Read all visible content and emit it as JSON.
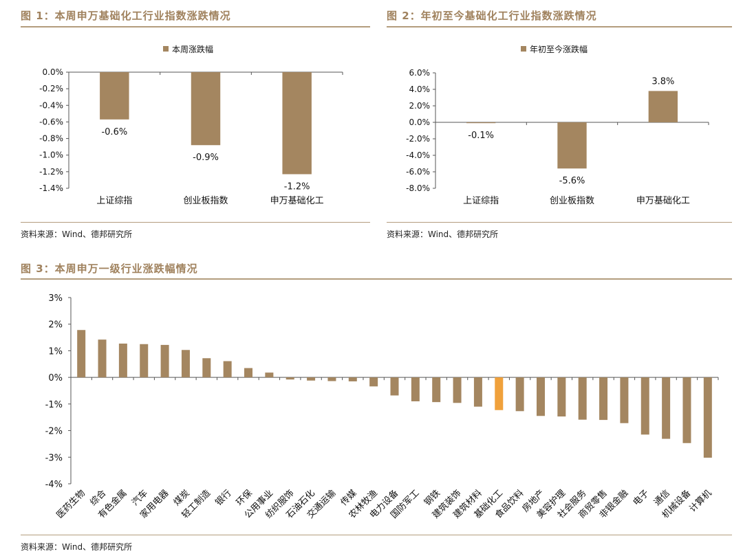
{
  "colors": {
    "bar": "#a48660",
    "highlight": "#f0a13b",
    "title": "#a0825e",
    "rule": "#b39c7d",
    "axis": "#555555"
  },
  "fig1": {
    "title": "图 1：本周申万基础化工行业指数涨跌情况",
    "source": "资料来源：Wind、德邦研究所"
  },
  "fig2": {
    "title": "图 2：年初至今基础化工行业指数涨跌情况",
    "source": "资料来源：Wind、德邦研究所"
  },
  "fig3": {
    "title": "图 3：本周申万一级行业涨跌幅情况",
    "source": "资料来源：Wind、德邦研究所"
  },
  "chart_data": [
    {
      "type": "bar",
      "title": "",
      "legend": "本周涨跌幅",
      "legend_position": "top-center",
      "categories": [
        "上证综指",
        "创业板指数",
        "申万基础化工"
      ],
      "values": [
        -0.57,
        -0.88,
        -1.23
      ],
      "data_labels": [
        "-0.6%",
        "-0.9%",
        "-1.2%"
      ],
      "ylim": [
        -1.4,
        0.0
      ],
      "yticks": [
        0.0,
        -0.2,
        -0.4,
        -0.6,
        -0.8,
        -1.0,
        -1.2,
        -1.4
      ],
      "ytick_labels": [
        "0.0%",
        "-0.2%",
        "-0.4%",
        "-0.6%",
        "-0.8%",
        "-1.0%",
        "-1.2%",
        "-1.4%"
      ],
      "xlabel": "",
      "ylabel": ""
    },
    {
      "type": "bar",
      "title": "",
      "legend": "年初至今涨跌幅",
      "legend_position": "top-center",
      "categories": [
        "上证综指",
        "创业板指数",
        "申万基础化工"
      ],
      "values": [
        -0.1,
        -5.6,
        3.8
      ],
      "data_labels": [
        "-0.1%",
        "-5.6%",
        "3.8%"
      ],
      "ylim": [
        -8.0,
        6.0
      ],
      "yticks": [
        6.0,
        4.0,
        2.0,
        0.0,
        -2.0,
        -4.0,
        -6.0,
        -8.0
      ],
      "ytick_labels": [
        "6.0%",
        "4.0%",
        "2.0%",
        "0.0%",
        "-2.0%",
        "-4.0%",
        "-6.0%",
        "-8.0%"
      ],
      "xlabel": "",
      "ylabel": ""
    },
    {
      "type": "bar",
      "title": "",
      "highlight_category": "基础化工",
      "categories": [
        "医药生物",
        "综合",
        "有色金属",
        "汽车",
        "家用电器",
        "煤炭",
        "轻工制造",
        "银行",
        "环保",
        "公用事业",
        "纺织服饰",
        "石油石化",
        "交通运输",
        "传媒",
        "农林牧渔",
        "电力设备",
        "国防军工",
        "钢铁",
        "建筑装饰",
        "建筑材料",
        "基础化工",
        "食品饮料",
        "房地产",
        "美容护理",
        "社会服务",
        "商贸零售",
        "非银金融",
        "电子",
        "通信",
        "机械设备",
        "计算机"
      ],
      "values": [
        1.78,
        1.42,
        1.27,
        1.25,
        1.22,
        1.03,
        0.72,
        0.61,
        0.35,
        0.18,
        -0.08,
        -0.12,
        -0.14,
        -0.15,
        -0.34,
        -0.68,
        -0.9,
        -0.93,
        -0.96,
        -1.1,
        -1.23,
        -1.27,
        -1.45,
        -1.47,
        -1.59,
        -1.6,
        -1.72,
        -2.15,
        -2.31,
        -2.47,
        -3.02
      ],
      "ylim": [
        -4,
        3
      ],
      "yticks": [
        3,
        2,
        1,
        0,
        -1,
        -2,
        -3,
        -4
      ],
      "ytick_labels": [
        "3%",
        "2%",
        "1%",
        "0%",
        "-1%",
        "-2%",
        "-3%",
        "-4%"
      ],
      "xlabel": "",
      "ylabel": ""
    }
  ]
}
